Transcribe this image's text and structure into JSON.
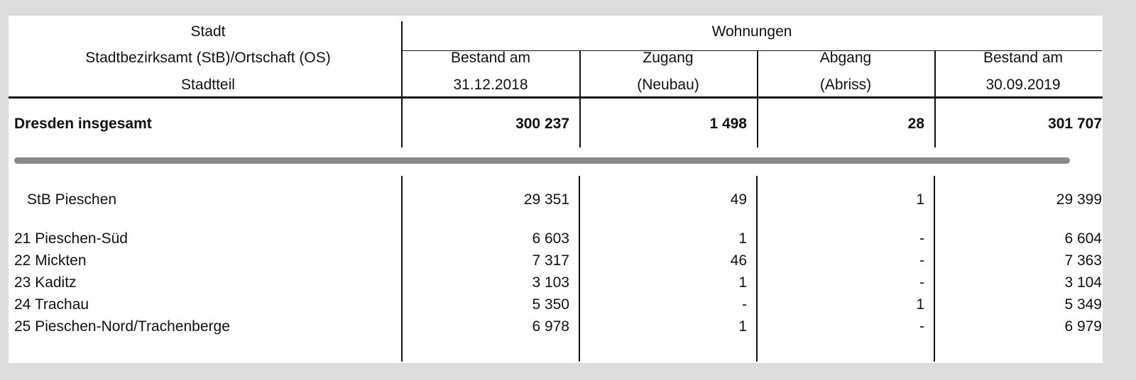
{
  "header": {
    "row_label_lines": [
      "Stadt",
      "Stadtbezirksamt (StB)/Ortschaft (OS)",
      "Stadtteil"
    ],
    "group_label": "Wohnungen",
    "columns": [
      [
        "Bestand am",
        "31.12.2018"
      ],
      [
        "Zugang",
        "(Neubau)"
      ],
      [
        "Abgang",
        "(Abriss)"
      ],
      [
        "Bestand am",
        "30.09.2019"
      ]
    ]
  },
  "total_row": {
    "label": "Dresden insgesamt",
    "values": [
      "300 237",
      "1 498",
      "28",
      "301 707"
    ]
  },
  "district_row": {
    "label": "StB Pieschen",
    "values": [
      "29 351",
      "49",
      "1",
      "29 399"
    ]
  },
  "rows": [
    {
      "label": "21 Pieschen-Süd",
      "values": [
        "6 603",
        "1",
        "-",
        "6 604"
      ]
    },
    {
      "label": "22 Mickten",
      "values": [
        "7 317",
        "46",
        "-",
        "7 363"
      ]
    },
    {
      "label": "23 Kaditz",
      "values": [
        "3 103",
        "1",
        "-",
        "3 104"
      ]
    },
    {
      "label": "24 Trachau",
      "values": [
        "5 350",
        "-",
        "1",
        "5 349"
      ]
    },
    {
      "label": "25 Pieschen-Nord/Trachenberge",
      "values": [
        "6 978",
        "1",
        "-",
        "6 979"
      ]
    }
  ]
}
